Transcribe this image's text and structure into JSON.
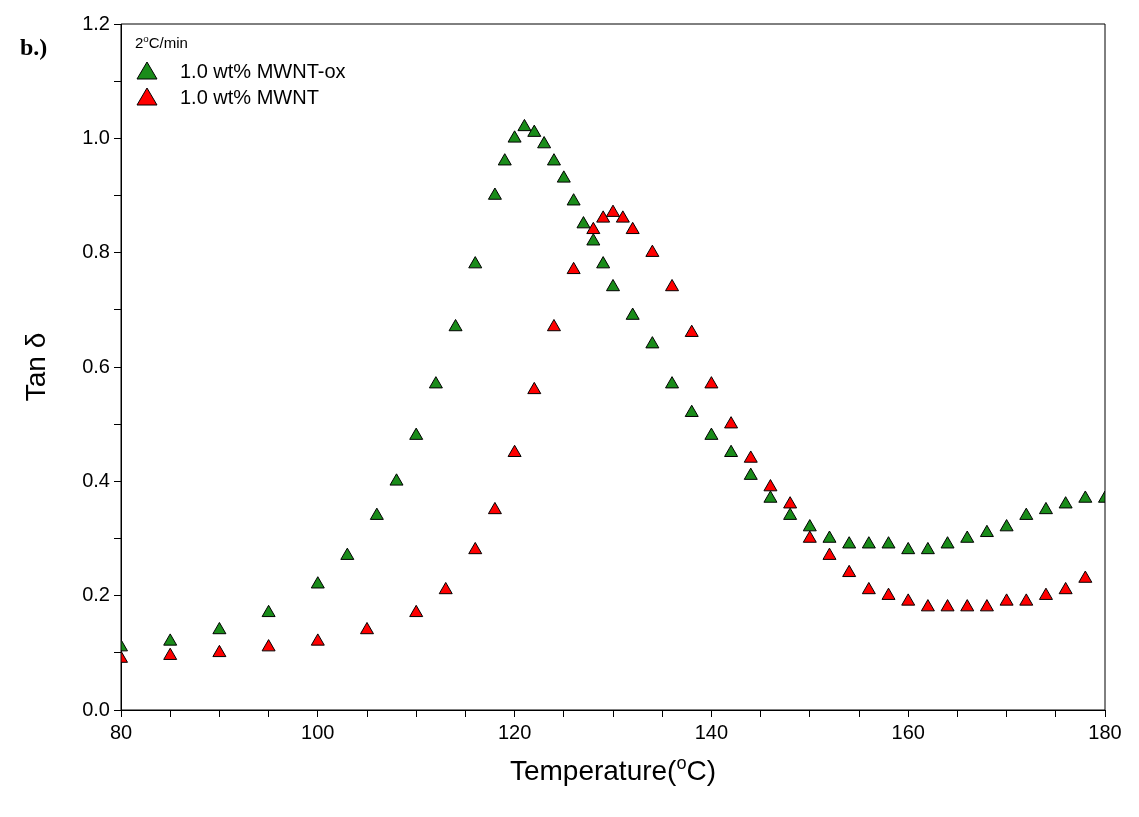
{
  "chart_data": {
    "type": "scatter",
    "xlabel": "Temperature($^{o}$C)",
    "ylabel": "Tan δ",
    "legend_title": "2$^{o}$C/min",
    "legend": "top left",
    "marker": "triangle",
    "grid": false,
    "annotations": [
      "b.)"
    ],
    "xlim": [
      80,
      180
    ],
    "ylim": [
      0,
      1.2
    ],
    "xticks": [
      80,
      {
        "value": 85,
        "label": null
      },
      100,
      {
        "value": 95,
        "label": null
      },
      {
        "value": 90,
        "label": null
      },
      {
        "value": 105,
        "label": null
      },
      {
        "value": 110,
        "label": null
      },
      {
        "value": 115,
        "label": null
      },
      120,
      {
        "value": 125,
        "label": null
      },
      {
        "value": 130,
        "label": null
      },
      {
        "value": 135,
        "label": null
      },
      140,
      {
        "value": 145,
        "label": null
      },
      {
        "value": 150,
        "label": null
      },
      {
        "value": 155,
        "label": null
      },
      160,
      {
        "value": 165,
        "label": null
      },
      {
        "value": 170,
        "label": null
      },
      {
        "value": 175,
        "label": null
      },
      180
    ],
    "yticks": [
      {
        "value": 0,
        "label": "0.0"
      },
      {
        "value": 0.1,
        "label": null
      },
      0.2,
      {
        "value": 0.3,
        "label": null
      },
      0.4,
      {
        "value": 0.5,
        "label": null
      },
      0.6,
      {
        "value": 0.7,
        "label": null
      },
      0.8,
      {
        "value": 0.9,
        "label": null
      },
      {
        "value": 1,
        "label": "1.0"
      },
      {
        "value": 1.1,
        "label": null
      },
      1.2
    ],
    "series": [
      {
        "name": "1.0 wt% MWNT-ox",
        "color": "#1a8c1a",
        "x": [
          80,
          85,
          90,
          95,
          100,
          103,
          106,
          108,
          110,
          112,
          114,
          116,
          118,
          119,
          120,
          121,
          122,
          123,
          124,
          125,
          126,
          127,
          128,
          129,
          130,
          132,
          134,
          136,
          138,
          140,
          142,
          144,
          146,
          148,
          150,
          152,
          154,
          156,
          158,
          160,
          162,
          164,
          166,
          168,
          170,
          172,
          174,
          176,
          178,
          180
        ],
        "values": [
          0.11,
          0.12,
          0.14,
          0.17,
          0.22,
          0.27,
          0.34,
          0.4,
          0.48,
          0.57,
          0.67,
          0.78,
          0.9,
          0.96,
          1.0,
          1.02,
          1.01,
          0.99,
          0.96,
          0.93,
          0.89,
          0.85,
          0.82,
          0.78,
          0.74,
          0.69,
          0.64,
          0.57,
          0.52,
          0.48,
          0.45,
          0.41,
          0.37,
          0.34,
          0.32,
          0.3,
          0.29,
          0.29,
          0.29,
          0.28,
          0.28,
          0.29,
          0.3,
          0.31,
          0.32,
          0.34,
          0.35,
          0.36,
          0.37,
          0.37
        ]
      },
      {
        "name": "1.0 wt% MWNT",
        "color": "#ff0000",
        "x": [
          80,
          85,
          90,
          95,
          100,
          105,
          110,
          113,
          116,
          118,
          120,
          122,
          124,
          126,
          128,
          129,
          130,
          131,
          132,
          134,
          136,
          138,
          140,
          142,
          144,
          146,
          148,
          150,
          152,
          154,
          156,
          158,
          160,
          162,
          164,
          166,
          168,
          170,
          172,
          174,
          176,
          178
        ],
        "values": [
          0.09,
          0.095,
          0.1,
          0.11,
          0.12,
          0.14,
          0.17,
          0.21,
          0.28,
          0.35,
          0.45,
          0.56,
          0.67,
          0.77,
          0.84,
          0.86,
          0.87,
          0.86,
          0.84,
          0.8,
          0.74,
          0.66,
          0.57,
          0.5,
          0.44,
          0.39,
          0.36,
          0.3,
          0.27,
          0.24,
          0.21,
          0.2,
          0.19,
          0.18,
          0.18,
          0.18,
          0.18,
          0.19,
          0.19,
          0.2,
          0.21,
          0.23
        ]
      }
    ]
  }
}
